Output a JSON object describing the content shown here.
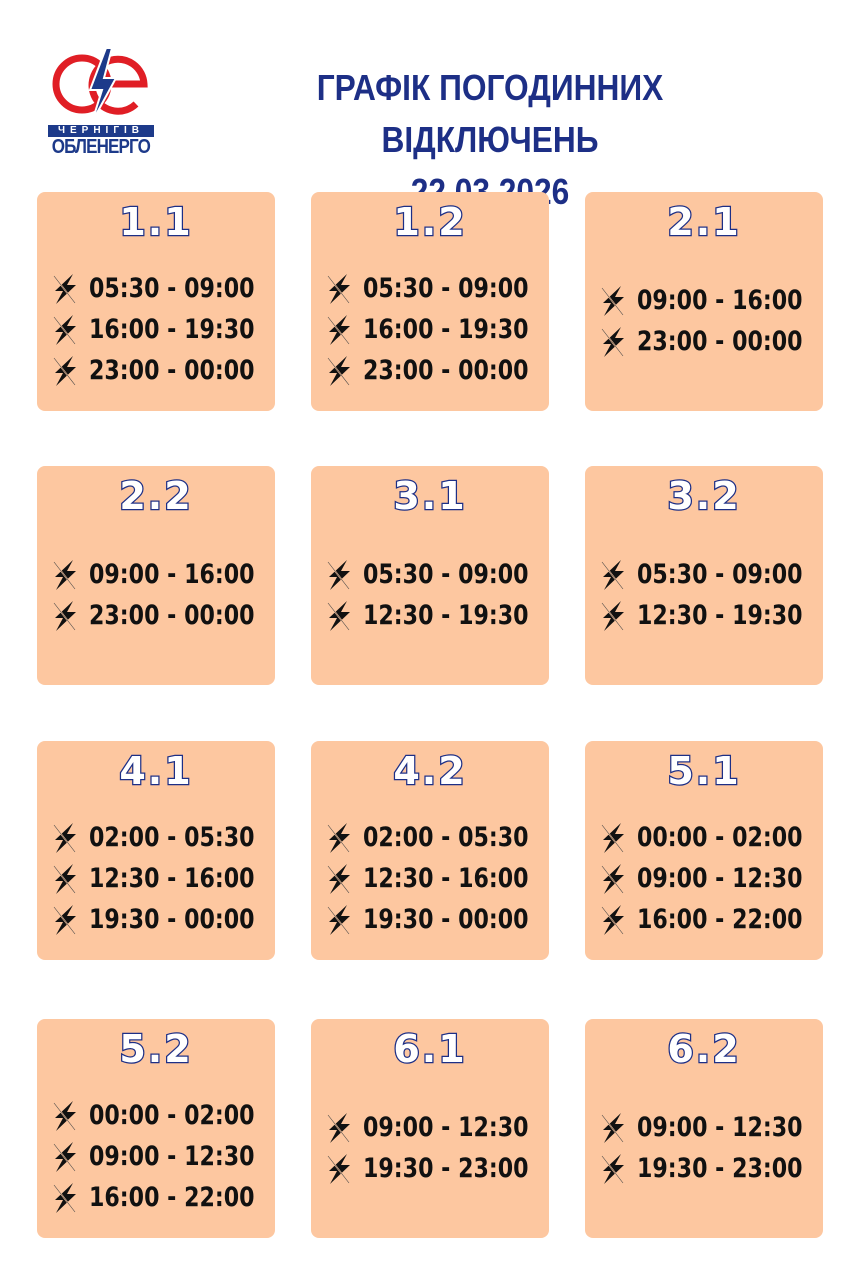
{
  "logo": {
    "city": "ЧЕРНІГІВ",
    "name": "ОБЛЕНЕРГО",
    "colors": {
      "ring": "#e01e25",
      "bolt": "#1d3a8a"
    }
  },
  "header": {
    "title": "ГРАФІК ПОГОДИННИХ ВІДКЛЮЧЕНЬ",
    "date": "22.03.2026"
  },
  "colors": {
    "card": "#fdc7a0",
    "accent": "#1d2f86"
  },
  "groups": [
    {
      "id": "1.1",
      "slots": [
        "05:30 - 09:00",
        "16:00 - 19:30",
        "23:00 - 00:00"
      ]
    },
    {
      "id": "1.2",
      "slots": [
        "05:30 - 09:00",
        "16:00 - 19:30",
        "23:00 - 00:00"
      ]
    },
    {
      "id": "2.1",
      "slots": [
        "09:00 - 16:00",
        "23:00 - 00:00"
      ]
    },
    {
      "id": "2.2",
      "slots": [
        "09:00 - 16:00",
        "23:00 - 00:00"
      ]
    },
    {
      "id": "3.1",
      "slots": [
        "05:30 - 09:00",
        "12:30 - 19:30"
      ]
    },
    {
      "id": "3.2",
      "slots": [
        "05:30 - 09:00",
        "12:30 - 19:30"
      ]
    },
    {
      "id": "4.1",
      "slots": [
        "02:00 - 05:30",
        "12:30 - 16:00",
        "19:30 - 00:00"
      ]
    },
    {
      "id": "4.2",
      "slots": [
        "02:00 - 05:30",
        "12:30 - 16:00",
        "19:30 - 00:00"
      ]
    },
    {
      "id": "5.1",
      "slots": [
        "00:00 - 02:00",
        "09:00 - 12:30",
        "16:00 - 22:00"
      ]
    },
    {
      "id": "5.2",
      "slots": [
        "00:00 - 02:00",
        "09:00 - 12:30",
        "16:00 - 22:00"
      ]
    },
    {
      "id": "6.1",
      "slots": [
        "09:00 - 12:30",
        "19:30 - 23:00"
      ]
    },
    {
      "id": "6.2",
      "slots": [
        "09:00 - 12:30",
        "19:30 - 23:00"
      ]
    }
  ]
}
